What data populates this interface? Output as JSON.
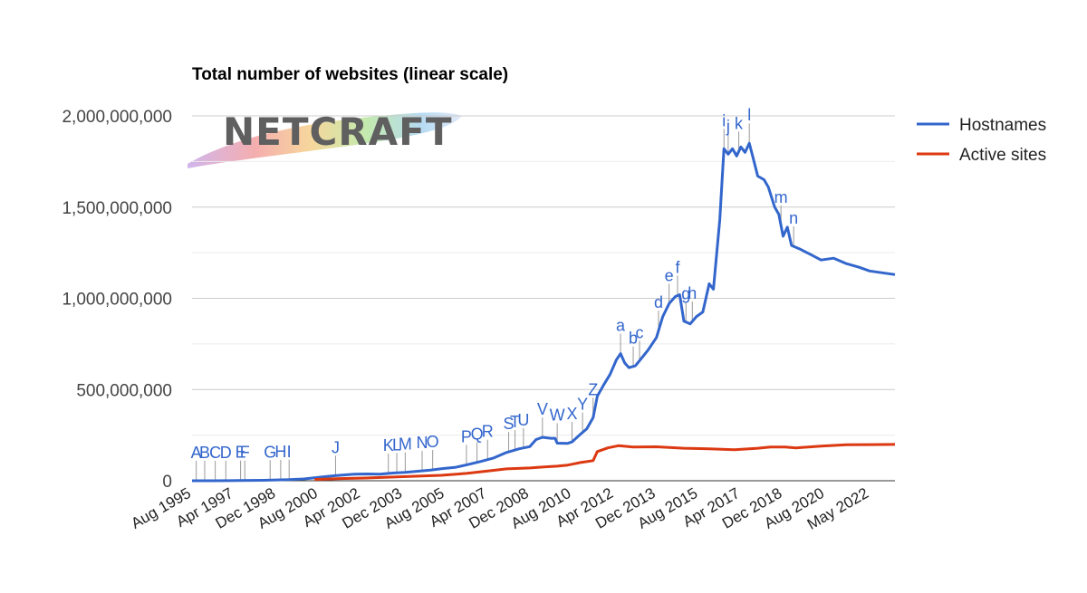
{
  "colors": {
    "hostnames": "#3366cc",
    "active": "#dc3912",
    "grid": "#cccccc",
    "annotation_stem": "#999999"
  },
  "logo": {
    "text": "NETCRAFT"
  },
  "chart_data": {
    "type": "line",
    "title": "Total number of websites (linear scale)",
    "xlabel": "",
    "ylabel": "",
    "ylim": [
      0,
      2000000000
    ],
    "y_ticks": [
      {
        "value": 0,
        "label": "0"
      },
      {
        "value": 500000000,
        "label": "500,000,000"
      },
      {
        "value": 1000000000,
        "label": "1,000,000,000"
      },
      {
        "value": 1500000000,
        "label": "1,500,000,000"
      },
      {
        "value": 2000000000,
        "label": "2,000,000,000"
      }
    ],
    "x_range": [
      "1995-08",
      "2023-05"
    ],
    "x_ticks": [
      {
        "date": "1995-08",
        "label": "Aug 1995"
      },
      {
        "date": "1997-04",
        "label": "Apr 1997"
      },
      {
        "date": "1998-12",
        "label": "Dec 1998"
      },
      {
        "date": "2000-08",
        "label": "Aug 2000"
      },
      {
        "date": "2002-04",
        "label": "Apr 2002"
      },
      {
        "date": "2003-12",
        "label": "Dec 2003"
      },
      {
        "date": "2005-08",
        "label": "Aug 2005"
      },
      {
        "date": "2007-04",
        "label": "Apr 2007"
      },
      {
        "date": "2008-12",
        "label": "Dec 2008"
      },
      {
        "date": "2010-08",
        "label": "Aug 2010"
      },
      {
        "date": "2012-04",
        "label": "Apr 2012"
      },
      {
        "date": "2013-12",
        "label": "Dec 2013"
      },
      {
        "date": "2015-08",
        "label": "Aug 2015"
      },
      {
        "date": "2017-04",
        "label": "Apr 2017"
      },
      {
        "date": "2018-12",
        "label": "Dec 2018"
      },
      {
        "date": "2020-08",
        "label": "Aug 2020"
      },
      {
        "date": "2022-05",
        "label": "May 2022"
      }
    ],
    "legend": {
      "position": "right"
    },
    "grid": true,
    "series": [
      {
        "name": "Hostnames",
        "color": "#3366cc",
        "points": [
          [
            "1995-08",
            18000
          ],
          [
            "1996-06",
            230000
          ],
          [
            "1997-06",
            1200000
          ],
          [
            "1998-06",
            2600000
          ],
          [
            "1999-06",
            6200000
          ],
          [
            "2000-01",
            10000000
          ],
          [
            "2000-08",
            19000000
          ],
          [
            "2001-01",
            25000000
          ],
          [
            "2001-07",
            31000000
          ],
          [
            "2002-01",
            36000000
          ],
          [
            "2002-07",
            37000000
          ],
          [
            "2003-01",
            35500000
          ],
          [
            "2003-07",
            42000000
          ],
          [
            "2004-01",
            46000000
          ],
          [
            "2004-07",
            52000000
          ],
          [
            "2005-01",
            58000000
          ],
          [
            "2005-07",
            67000000
          ],
          [
            "2006-01",
            74000000
          ],
          [
            "2006-07",
            90000000
          ],
          [
            "2007-01",
            106000000
          ],
          [
            "2007-07",
            125000000
          ],
          [
            "2008-01",
            155000000
          ],
          [
            "2008-07",
            175000000
          ],
          [
            "2008-12",
            187000000
          ],
          [
            "2009-03",
            226000000
          ],
          [
            "2009-06",
            238000000
          ],
          [
            "2009-10",
            233000000
          ],
          [
            "2009-12",
            233000000
          ],
          [
            "2010-01",
            206000000
          ],
          [
            "2010-06",
            205000000
          ],
          [
            "2010-08",
            213000000
          ],
          [
            "2010-12",
            255000000
          ],
          [
            "2011-03",
            285000000
          ],
          [
            "2011-06",
            346000000
          ],
          [
            "2011-08",
            463000000
          ],
          [
            "2011-11",
            525000000
          ],
          [
            "2012-02",
            582000000
          ],
          [
            "2012-05",
            662000000
          ],
          [
            "2012-07",
            697000000
          ],
          [
            "2012-09",
            645000000
          ],
          [
            "2012-11",
            620000000
          ],
          [
            "2013-02",
            630000000
          ],
          [
            "2013-05",
            673000000
          ],
          [
            "2013-08",
            716000000
          ],
          [
            "2013-12",
            785000000
          ],
          [
            "2014-03",
            900000000
          ],
          [
            "2014-06",
            971000000
          ],
          [
            "2014-09",
            1010000000
          ],
          [
            "2014-11",
            1020000000
          ],
          [
            "2015-01",
            875000000
          ],
          [
            "2015-04",
            860000000
          ],
          [
            "2015-07",
            900000000
          ],
          [
            "2015-10",
            925000000
          ],
          [
            "2016-01",
            1080000000
          ],
          [
            "2016-03",
            1050000000
          ],
          [
            "2016-06",
            1430000000
          ],
          [
            "2016-08",
            1820000000
          ],
          [
            "2016-10",
            1790000000
          ],
          [
            "2016-12",
            1820000000
          ],
          [
            "2017-02",
            1780000000
          ],
          [
            "2017-04",
            1830000000
          ],
          [
            "2017-06",
            1800000000
          ],
          [
            "2017-08",
            1850000000
          ],
          [
            "2017-10",
            1760000000
          ],
          [
            "2017-12",
            1670000000
          ],
          [
            "2018-03",
            1650000000
          ],
          [
            "2018-05",
            1610000000
          ],
          [
            "2018-08",
            1500000000
          ],
          [
            "2018-10",
            1460000000
          ],
          [
            "2018-12",
            1340000000
          ],
          [
            "2019-02",
            1390000000
          ],
          [
            "2019-04",
            1290000000
          ],
          [
            "2019-08",
            1270000000
          ],
          [
            "2020-01",
            1240000000
          ],
          [
            "2020-06",
            1210000000
          ],
          [
            "2020-12",
            1220000000
          ],
          [
            "2021-06",
            1190000000
          ],
          [
            "2021-12",
            1170000000
          ],
          [
            "2022-05",
            1150000000
          ],
          [
            "2023-05",
            1130000000
          ]
        ]
      },
      {
        "name": "Active sites",
        "color": "#dc3912",
        "points": [
          [
            "2000-06",
            7000000
          ],
          [
            "2001-06",
            12000000
          ],
          [
            "2002-06",
            15000000
          ],
          [
            "2003-06",
            20000000
          ],
          [
            "2004-06",
            25000000
          ],
          [
            "2005-06",
            30000000
          ],
          [
            "2006-06",
            40000000
          ],
          [
            "2007-06",
            56000000
          ],
          [
            "2008-01",
            65000000
          ],
          [
            "2008-12",
            70000000
          ],
          [
            "2009-06",
            75000000
          ],
          [
            "2010-01",
            80000000
          ],
          [
            "2010-06",
            86000000
          ],
          [
            "2010-12",
            100000000
          ],
          [
            "2011-06",
            110000000
          ],
          [
            "2011-08",
            160000000
          ],
          [
            "2012-01",
            180000000
          ],
          [
            "2012-06",
            192000000
          ],
          [
            "2013-01",
            185000000
          ],
          [
            "2013-12",
            186000000
          ],
          [
            "2015-01",
            178000000
          ],
          [
            "2016-01",
            175000000
          ],
          [
            "2017-01",
            170000000
          ],
          [
            "2017-12",
            178000000
          ],
          [
            "2018-06",
            185000000
          ],
          [
            "2019-01",
            185000000
          ],
          [
            "2019-06",
            180000000
          ],
          [
            "2020-06",
            190000000
          ],
          [
            "2021-06",
            197000000
          ],
          [
            "2022-05",
            198000000
          ],
          [
            "2023-05",
            199000000
          ]
        ]
      }
    ],
    "annotations": [
      {
        "label": "A",
        "date": "1995-10",
        "series": 0
      },
      {
        "label": "B",
        "date": "1996-02",
        "series": 0
      },
      {
        "label": "C",
        "date": "1996-07",
        "series": 0
      },
      {
        "label": "D",
        "date": "1996-12",
        "series": 0
      },
      {
        "label": "E",
        "date": "1997-07",
        "series": 0
      },
      {
        "label": "F",
        "date": "1997-09",
        "series": 0
      },
      {
        "label": "G",
        "date": "1998-09",
        "series": 0
      },
      {
        "label": "H",
        "date": "1999-02",
        "series": 0
      },
      {
        "label": "I",
        "date": "1999-06",
        "series": 0
      },
      {
        "label": "J",
        "date": "2001-04",
        "series": 0
      },
      {
        "label": "K",
        "date": "2003-05",
        "series": 0
      },
      {
        "label": "L",
        "date": "2003-09",
        "series": 0
      },
      {
        "label": "M",
        "date": "2004-01",
        "series": 0
      },
      {
        "label": "N",
        "date": "2004-09",
        "series": 0
      },
      {
        "label": "O",
        "date": "2005-02",
        "series": 0
      },
      {
        "label": "P",
        "date": "2006-06",
        "series": 0
      },
      {
        "label": "Q",
        "date": "2006-11",
        "series": 0
      },
      {
        "label": "R",
        "date": "2007-04",
        "series": 0
      },
      {
        "label": "S",
        "date": "2008-02",
        "series": 0
      },
      {
        "label": "T",
        "date": "2008-05",
        "series": 0
      },
      {
        "label": "U",
        "date": "2008-09",
        "series": 0
      },
      {
        "label": "V",
        "date": "2009-06",
        "series": 0
      },
      {
        "label": "W",
        "date": "2010-01",
        "series": 0
      },
      {
        "label": "X",
        "date": "2010-08",
        "series": 0
      },
      {
        "label": "Y",
        "date": "2011-01",
        "series": 0
      },
      {
        "label": "Z",
        "date": "2011-06",
        "series": 0
      },
      {
        "label": "a",
        "date": "2012-07",
        "series": 0
      },
      {
        "label": "b",
        "date": "2013-01",
        "series": 0
      },
      {
        "label": "c",
        "date": "2013-04",
        "series": 0
      },
      {
        "label": "d",
        "date": "2014-01",
        "series": 0
      },
      {
        "label": "e",
        "date": "2014-06",
        "series": 0
      },
      {
        "label": "f",
        "date": "2014-10",
        "series": 0
      },
      {
        "label": "g",
        "date": "2015-02",
        "series": 0
      },
      {
        "label": "h",
        "date": "2015-05",
        "series": 0
      },
      {
        "label": "i",
        "date": "2016-08",
        "series": 0
      },
      {
        "label": "j",
        "date": "2016-10",
        "series": 0
      },
      {
        "label": "k",
        "date": "2017-03",
        "series": 0
      },
      {
        "label": "l",
        "date": "2017-08",
        "series": 0
      },
      {
        "label": "m",
        "date": "2018-11",
        "series": 0
      },
      {
        "label": "n",
        "date": "2019-05",
        "series": 0
      }
    ]
  }
}
